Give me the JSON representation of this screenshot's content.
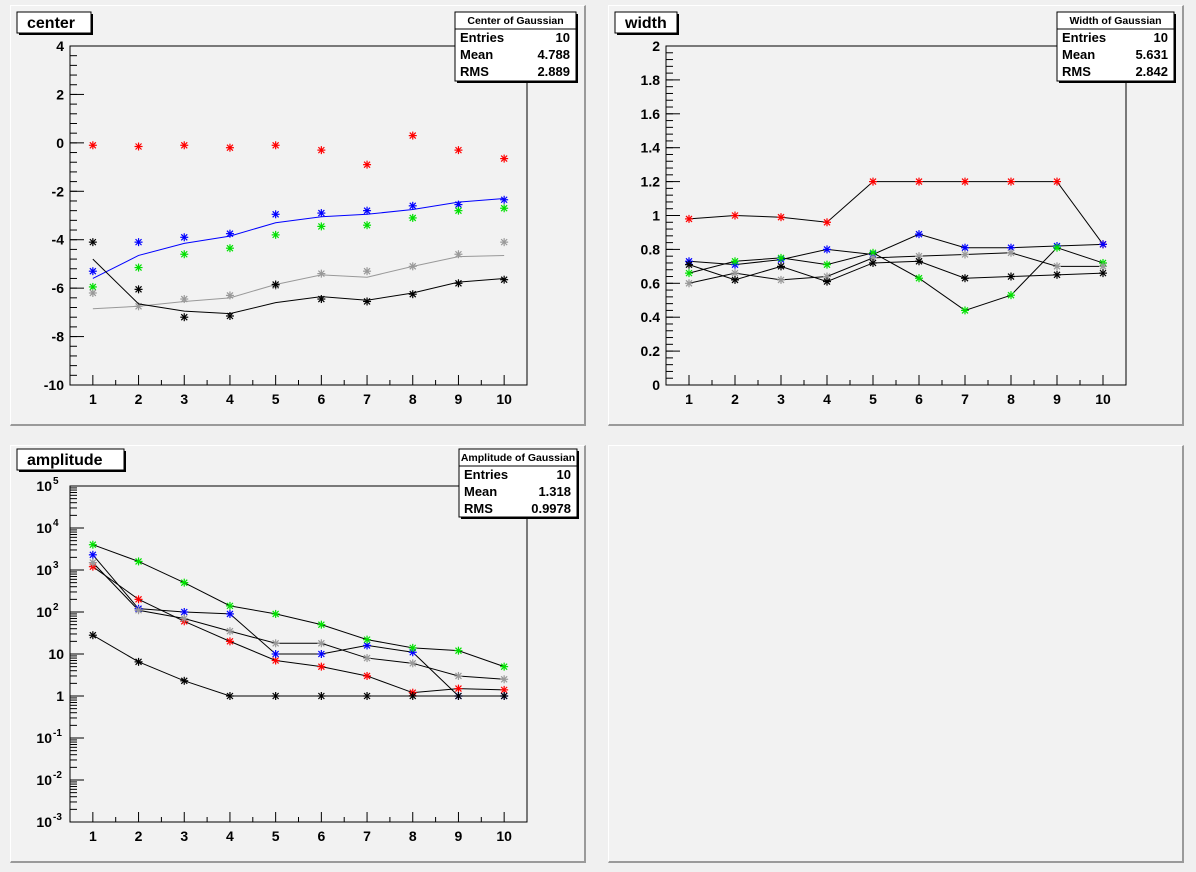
{
  "chart_data": [
    {
      "type": "scatter",
      "title": "center",
      "xlim": [
        0.5,
        10.5
      ],
      "ylim": [
        -10,
        4
      ],
      "yscale": "linear",
      "x_ticks": [
        "1",
        "2",
        "3",
        "4",
        "5",
        "6",
        "7",
        "8",
        "9",
        "10"
      ],
      "y_ticks": [
        "-10",
        "-8",
        "-6",
        "-4",
        "-2",
        "0",
        "2",
        "4"
      ],
      "stats": {
        "title": "Center of Gaussian",
        "rows": [
          {
            "label": "Entries",
            "value": "10"
          },
          {
            "label": "Mean",
            "value": "4.788"
          },
          {
            "label": "RMS",
            "value": "2.889"
          }
        ]
      },
      "series": [
        {
          "color": "#ff0000",
          "x": [
            1,
            2,
            3,
            4,
            5,
            6,
            7,
            8,
            9,
            10
          ],
          "markers": [
            -0.1,
            -0.15,
            -0.1,
            -0.2,
            -0.1,
            -0.3,
            -0.9,
            0.3,
            -0.3,
            -0.65
          ],
          "line": null
        },
        {
          "color": "#0000ff",
          "x": [
            1,
            2,
            3,
            4,
            5,
            6,
            7,
            8,
            9,
            10
          ],
          "markers": [
            -5.3,
            -4.1,
            -3.9,
            -3.75,
            -2.95,
            -2.9,
            -2.8,
            -2.6,
            -2.55,
            -2.35
          ],
          "line": [
            -5.6,
            -4.65,
            -4.15,
            -3.85,
            -3.3,
            -3.05,
            -2.95,
            -2.75,
            -2.45,
            -2.3
          ]
        },
        {
          "color": "#00e000",
          "x": [
            1,
            2,
            3,
            4,
            5,
            6,
            7,
            8,
            9,
            10
          ],
          "markers": [
            -5.95,
            -5.15,
            -4.6,
            -4.35,
            -3.8,
            -3.45,
            -3.4,
            -3.1,
            -2.8,
            -2.7
          ],
          "line": null
        },
        {
          "color": "#999999",
          "x": [
            1,
            2,
            3,
            4,
            5,
            6,
            7,
            8,
            9,
            10
          ],
          "markers": [
            -6.2,
            -6.75,
            -6.45,
            -6.3,
            -5.9,
            -5.4,
            -5.3,
            -5.1,
            -4.6,
            -4.1
          ],
          "line": [
            -6.85,
            -6.75,
            -6.55,
            -6.4,
            -5.85,
            -5.45,
            -5.55,
            -5.1,
            -4.7,
            -4.65
          ]
        },
        {
          "color": "#000000",
          "x": [
            1,
            2,
            3,
            4,
            5,
            6,
            7,
            8,
            9,
            10
          ],
          "markers": [
            -4.1,
            -6.05,
            -7.2,
            -7.15,
            -5.85,
            -6.45,
            -6.55,
            -6.25,
            -5.8,
            -5.65
          ],
          "line": [
            -4.8,
            -6.65,
            -6.95,
            -7.05,
            -6.6,
            -6.35,
            -6.5,
            -6.2,
            -5.75,
            -5.6
          ]
        }
      ]
    },
    {
      "type": "line",
      "title": "width",
      "xlim": [
        0.5,
        10.5
      ],
      "ylim": [
        0,
        2
      ],
      "yscale": "linear",
      "x_ticks": [
        "1",
        "2",
        "3",
        "4",
        "5",
        "6",
        "7",
        "8",
        "9",
        "10"
      ],
      "y_ticks": [
        "0",
        "0.2",
        "0.4",
        "0.6",
        "0.8",
        "1",
        "1.2",
        "1.4",
        "1.6",
        "1.8",
        "2"
      ],
      "stats": {
        "title": "Width of Gaussian",
        "rows": [
          {
            "label": "Entries",
            "value": "10"
          },
          {
            "label": "Mean",
            "value": "5.631"
          },
          {
            "label": "RMS",
            "value": "2.842"
          }
        ]
      },
      "series": [
        {
          "color": "#ff0000",
          "x": [
            1,
            2,
            3,
            4,
            5,
            6,
            7,
            8,
            9,
            10
          ],
          "markers": [
            0.98,
            1.0,
            0.99,
            0.96,
            1.2,
            1.2,
            1.2,
            1.2,
            1.2,
            0.83
          ],
          "line": [
            0.98,
            1.0,
            0.99,
            0.96,
            1.2,
            1.2,
            1.2,
            1.2,
            1.2,
            0.83
          ]
        },
        {
          "color": "#0000ff",
          "x": [
            1,
            2,
            3,
            4,
            5,
            6,
            7,
            8,
            9,
            10
          ],
          "markers": [
            0.73,
            0.71,
            0.74,
            0.8,
            0.77,
            0.89,
            0.81,
            0.81,
            0.82,
            0.83
          ],
          "line": [
            0.73,
            0.71,
            0.74,
            0.8,
            0.77,
            0.89,
            0.81,
            0.81,
            0.82,
            0.83
          ]
        },
        {
          "color": "#00e000",
          "x": [
            1,
            2,
            3,
            4,
            5,
            6,
            7,
            8,
            9,
            10
          ],
          "markers": [
            0.66,
            0.73,
            0.75,
            0.71,
            0.78,
            0.63,
            0.44,
            0.53,
            0.81,
            0.72
          ],
          "line": [
            0.66,
            0.73,
            0.75,
            0.71,
            0.78,
            0.63,
            0.44,
            0.53,
            0.81,
            0.72
          ]
        },
        {
          "color": "#999999",
          "x": [
            1,
            2,
            3,
            4,
            5,
            6,
            7,
            8,
            9,
            10
          ],
          "markers": [
            0.6,
            0.66,
            0.62,
            0.64,
            0.75,
            0.76,
            0.77,
            0.78,
            0.7,
            0.7
          ],
          "line": [
            0.6,
            0.66,
            0.62,
            0.64,
            0.75,
            0.76,
            0.77,
            0.78,
            0.7,
            0.7
          ]
        },
        {
          "color": "#000000",
          "x": [
            1,
            2,
            3,
            4,
            5,
            6,
            7,
            8,
            9,
            10
          ],
          "markers": [
            0.71,
            0.62,
            0.7,
            0.61,
            0.72,
            0.73,
            0.63,
            0.64,
            0.65,
            0.66
          ],
          "line": [
            0.71,
            0.62,
            0.7,
            0.61,
            0.72,
            0.73,
            0.63,
            0.64,
            0.65,
            0.66
          ]
        }
      ]
    },
    {
      "type": "line",
      "title": "amplitude",
      "xlim": [
        0.5,
        10.5
      ],
      "ylim": [
        0.001,
        100000
      ],
      "yscale": "log",
      "x_ticks": [
        "1",
        "2",
        "3",
        "4",
        "5",
        "6",
        "7",
        "8",
        "9",
        "10"
      ],
      "y_ticks": [
        {
          "base": "10",
          "exp": "-3"
        },
        {
          "base": "10",
          "exp": "-2"
        },
        {
          "base": "10",
          "exp": "-1"
        },
        {
          "base": "1",
          "exp": ""
        },
        {
          "base": "10",
          "exp": ""
        },
        {
          "base": "10",
          "exp": "2"
        },
        {
          "base": "10",
          "exp": "3"
        },
        {
          "base": "10",
          "exp": "4"
        },
        {
          "base": "10",
          "exp": "5"
        }
      ],
      "stats": {
        "title": "Amplitude of Gaussian",
        "rows": [
          {
            "label": "Entries",
            "value": "10"
          },
          {
            "label": "Mean",
            "value": "1.318"
          },
          {
            "label": "RMS",
            "value": "0.9978"
          }
        ]
      },
      "series": [
        {
          "color": "#ff0000",
          "x": [
            1,
            2,
            3,
            4,
            5,
            6,
            7,
            8,
            9,
            10
          ],
          "markers": [
            1200,
            200,
            60,
            20,
            7,
            5,
            3,
            1.2,
            1.5,
            1.4
          ],
          "line": [
            1200,
            200,
            60,
            20,
            7,
            5,
            3,
            1.2,
            1.5,
            1.4
          ]
        },
        {
          "color": "#0000ff",
          "x": [
            1,
            2,
            3,
            4,
            5,
            6,
            7,
            8,
            9,
            10
          ],
          "markers": [
            2300,
            120,
            100,
            90,
            10,
            10,
            16,
            11,
            1,
            1
          ],
          "line": [
            2300,
            120,
            100,
            90,
            10,
            10,
            16,
            11,
            1,
            1
          ]
        },
        {
          "color": "#00e000",
          "x": [
            1,
            2,
            3,
            4,
            5,
            6,
            7,
            8,
            9,
            10
          ],
          "markers": [
            4000,
            1600,
            500,
            140,
            90,
            50,
            22,
            14,
            12,
            5
          ],
          "line": [
            4000,
            1600,
            500,
            140,
            90,
            50,
            22,
            14,
            12,
            5
          ]
        },
        {
          "color": "#999999",
          "x": [
            1,
            2,
            3,
            4,
            5,
            6,
            7,
            8,
            9,
            10
          ],
          "markers": [
            1500,
            110,
            70,
            35,
            18,
            18,
            8,
            6,
            3,
            2.5
          ],
          "line": [
            1500,
            110,
            70,
            35,
            18,
            18,
            8,
            6,
            3,
            2.5
          ]
        },
        {
          "color": "#000000",
          "x": [
            1,
            2,
            3,
            4,
            5,
            6,
            7,
            8,
            9,
            10
          ],
          "markers": [
            28,
            6.5,
            2.3,
            1,
            1,
            1,
            1,
            1,
            1,
            1
          ],
          "line": [
            28,
            6.5,
            2.3,
            1,
            1,
            1,
            1,
            1,
            1,
            1
          ]
        }
      ]
    }
  ]
}
